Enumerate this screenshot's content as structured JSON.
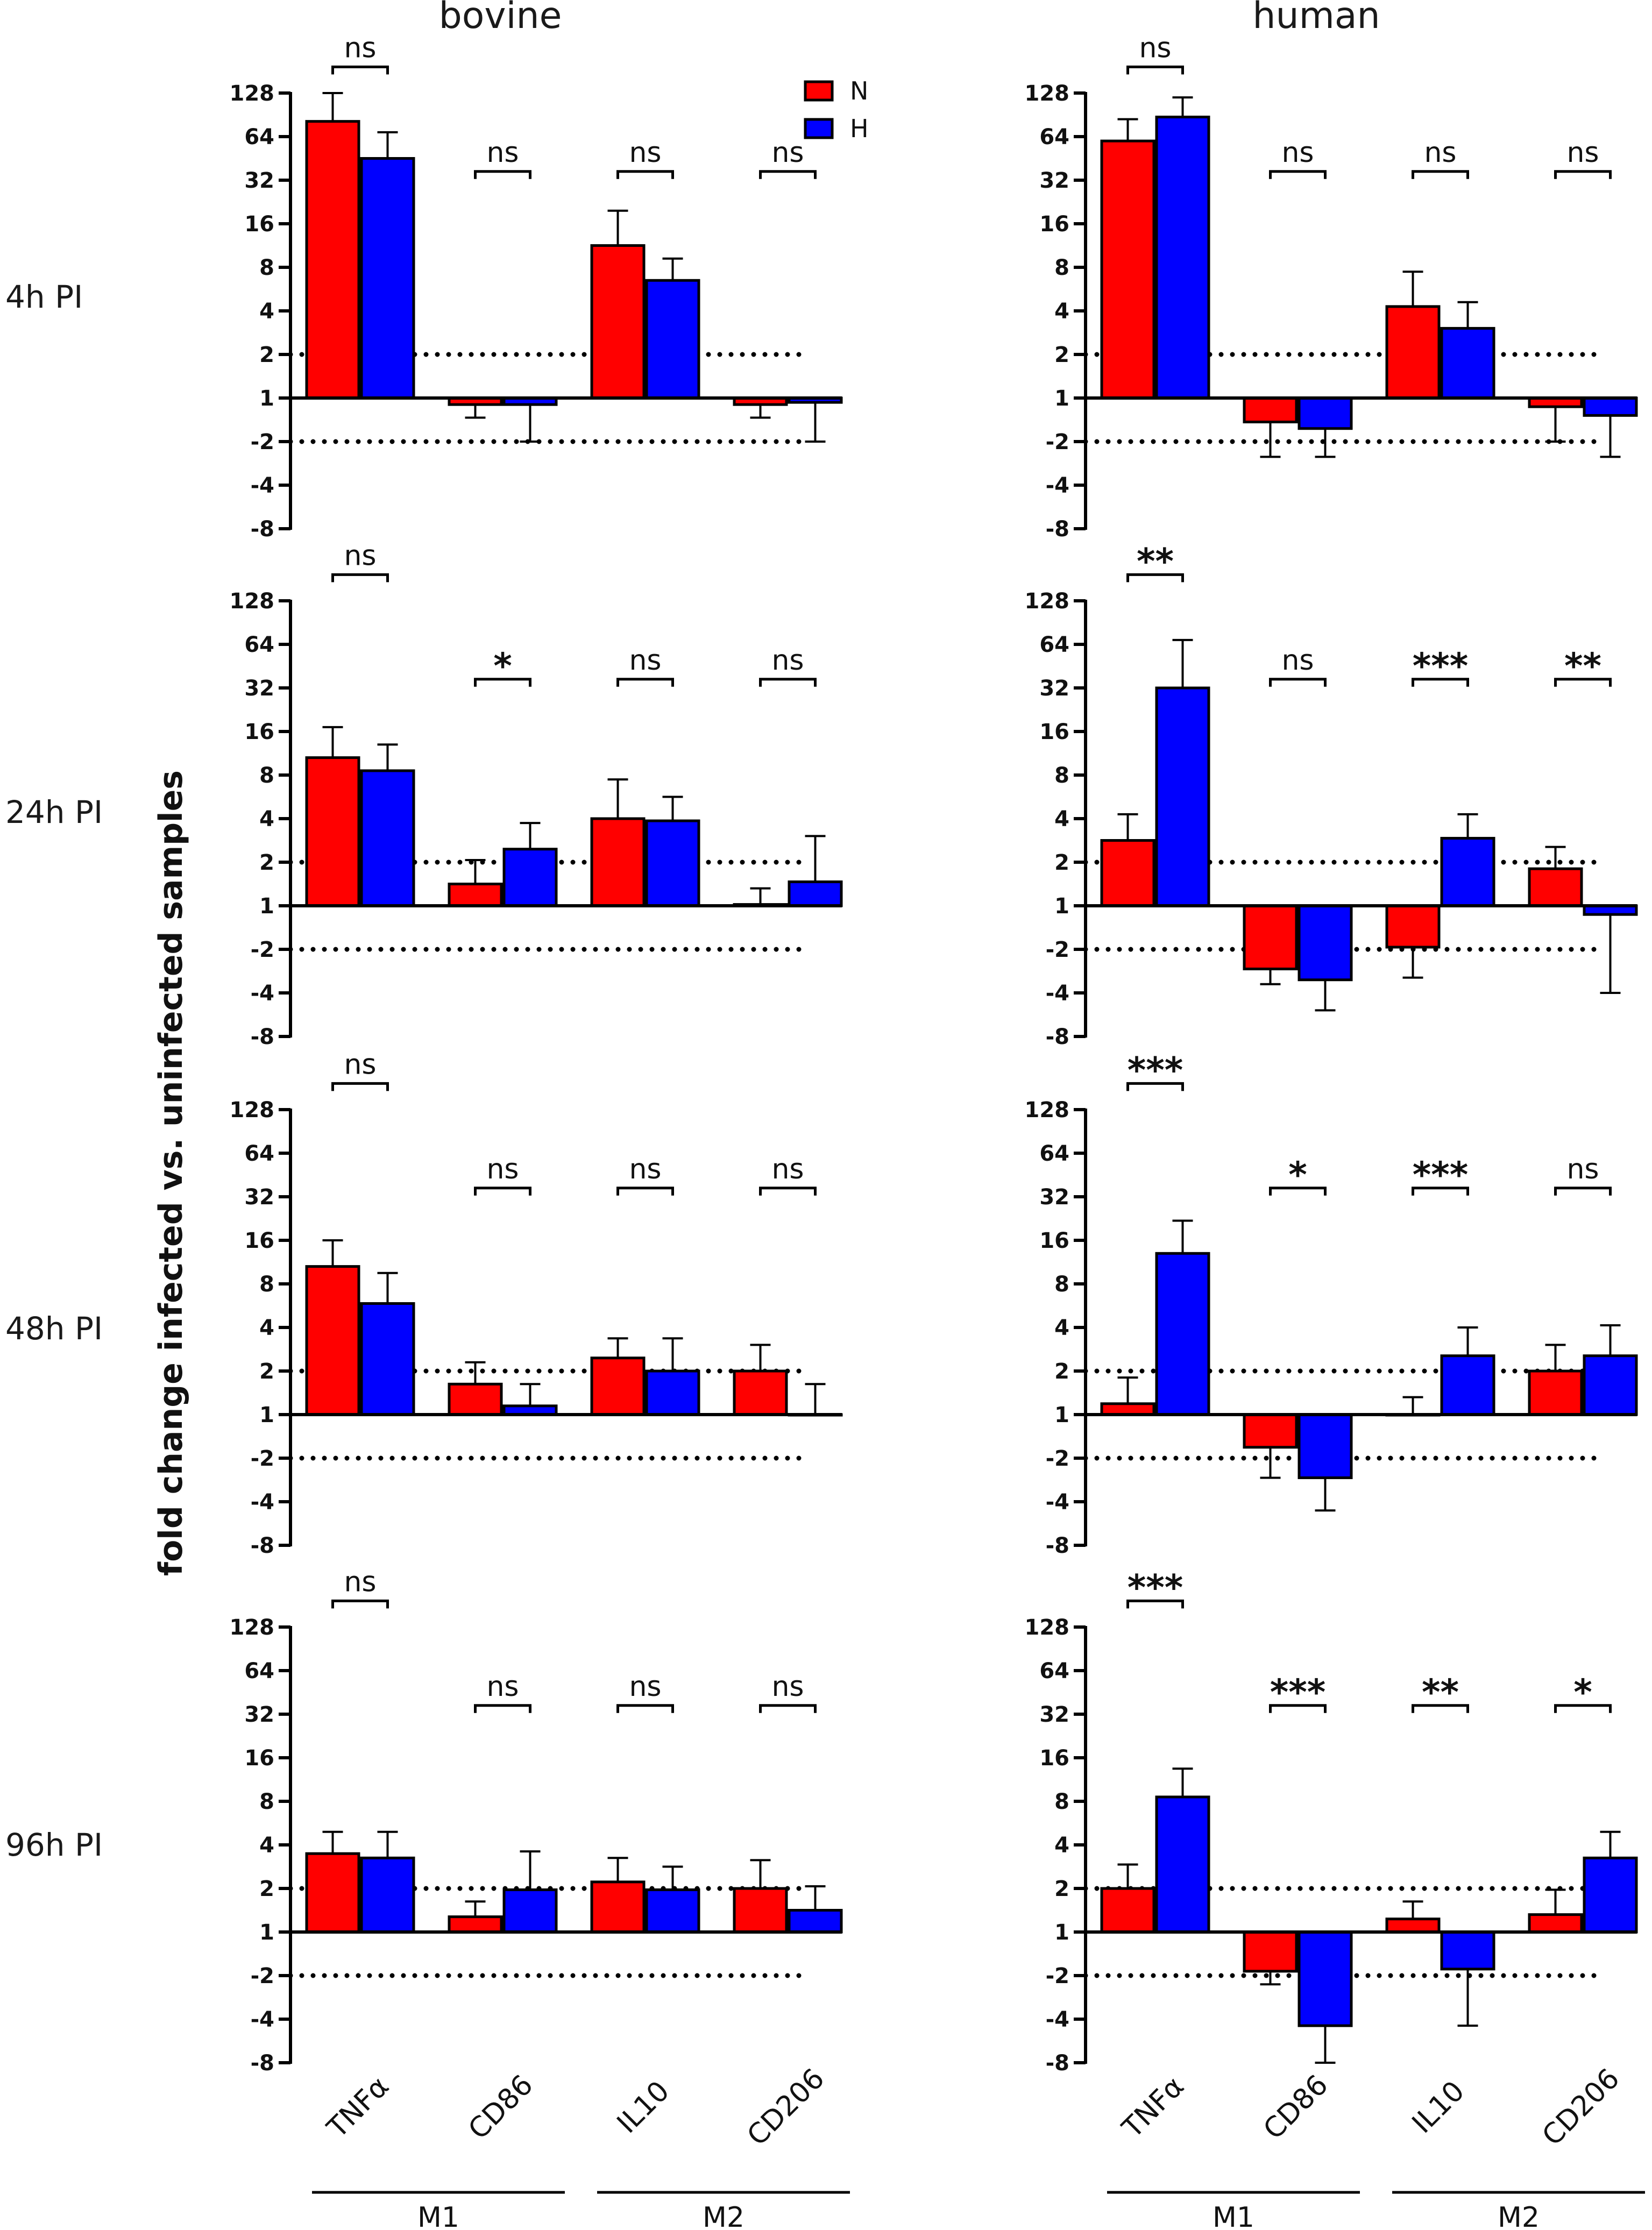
{
  "chart_data": {
    "type": "bar",
    "title": "",
    "ylabel": "fold change infected vs. uninfected samples",
    "y_ticks": [
      "128",
      "64",
      "32",
      "16",
      "8",
      "4",
      "2",
      "1",
      "-2",
      "-4",
      "-8"
    ],
    "ylim": [
      -8,
      128
    ],
    "y_scale": "log2 fold change (negative values shown as -2, -4, -8)",
    "threshold_lines": [
      2,
      -2
    ],
    "columns": [
      "bovine",
      "human"
    ],
    "rows": [
      "4h PI",
      "24h PI",
      "48h PI",
      "96h PI"
    ],
    "categories": [
      "TNFα",
      "CD86",
      "IL10",
      "CD206"
    ],
    "groups": [
      {
        "label": "M1",
        "categories": [
          "TNFα",
          "CD86"
        ]
      },
      {
        "label": "M2",
        "categories": [
          "IL10",
          "CD206"
        ]
      }
    ],
    "legend": [
      {
        "name": "N",
        "color": "#ff0000"
      },
      {
        "name": "H",
        "color": "#0000ff"
      }
    ],
    "legend_position": "top-right of bovine 4h PI panel",
    "panels": [
      {
        "species": "bovine",
        "time": "4h PI",
        "N": [
          {
            "v": 6.35,
            "e": 7.0
          },
          {
            "v": -0.15,
            "e": -0.45
          },
          {
            "v": 3.5,
            "e": 4.3
          },
          {
            "v": -0.15,
            "e": -0.45
          }
        ],
        "H": [
          {
            "v": 5.5,
            "e": 6.1
          },
          {
            "v": -0.15,
            "e": -1.0
          },
          {
            "v": 2.7,
            "e": 3.2
          },
          {
            "v": -0.1,
            "e": -1.0
          }
        ],
        "sig": [
          "ns",
          "ns",
          "ns",
          "ns"
        ]
      },
      {
        "species": "human",
        "time": "4h PI",
        "N": [
          {
            "v": 5.9,
            "e": 6.4
          },
          {
            "v": -0.55,
            "e": -1.35
          },
          {
            "v": 2.1,
            "e": 2.9
          },
          {
            "v": -0.2,
            "e": -1.0
          }
        ],
        "H": [
          {
            "v": 6.45,
            "e": 6.9
          },
          {
            "v": -0.7,
            "e": -1.35
          },
          {
            "v": 1.6,
            "e": 2.2
          },
          {
            "v": -0.4,
            "e": -1.35
          }
        ],
        "sig": [
          "ns",
          "ns",
          "ns",
          "ns"
        ]
      },
      {
        "species": "bovine",
        "time": "24h PI",
        "N": [
          {
            "v": 3.4,
            "e": 4.1
          },
          {
            "v": 0.5,
            "e": 1.05
          },
          {
            "v": 2.0,
            "e": 2.9
          },
          {
            "v": 0.03,
            "e": 0.4
          }
        ],
        "H": [
          {
            "v": 3.1,
            "e": 3.7
          },
          {
            "v": 1.3,
            "e": 1.9
          },
          {
            "v": 1.95,
            "e": 2.5
          },
          {
            "v": 0.55,
            "e": 1.6
          }
        ],
        "sig": [
          "ns",
          "*",
          "ns",
          "ns"
        ]
      },
      {
        "species": "human",
        "time": "24h PI",
        "N": [
          {
            "v": 1.5,
            "e": 2.1
          },
          {
            "v": -1.45,
            "e": -1.8
          },
          {
            "v": -0.95,
            "e": -1.65
          },
          {
            "v": 0.85,
            "e": 1.35
          }
        ],
        "H": [
          {
            "v": 5.0,
            "e": 6.1
          },
          {
            "v": -1.7,
            "e": -2.4
          },
          {
            "v": 1.55,
            "e": 2.1
          },
          {
            "v": -0.2,
            "e": -2.0
          }
        ],
        "sig": [
          "**",
          "ns",
          "***",
          "**"
        ]
      },
      {
        "species": "bovine",
        "time": "48h PI",
        "N": [
          {
            "v": 3.4,
            "e": 4.0
          },
          {
            "v": 0.7,
            "e": 1.2
          },
          {
            "v": 1.3,
            "e": 1.75
          },
          {
            "v": 1.0,
            "e": 1.6
          }
        ],
        "H": [
          {
            "v": 2.55,
            "e": 3.25
          },
          {
            "v": 0.2,
            "e": 0.7
          },
          {
            "v": 1.0,
            "e": 1.75
          },
          {
            "v": 0.0,
            "e": 0.7
          }
        ],
        "sig": [
          "ns",
          "ns",
          "ns",
          "ns"
        ]
      },
      {
        "species": "human",
        "time": "48h PI",
        "N": [
          {
            "v": 0.25,
            "e": 0.85
          },
          {
            "v": -0.75,
            "e": -1.45
          },
          {
            "v": 0.0,
            "e": 0.4
          },
          {
            "v": 1.0,
            "e": 1.6
          }
        ],
        "H": [
          {
            "v": 3.7,
            "e": 4.45
          },
          {
            "v": -1.45,
            "e": -2.2
          },
          {
            "v": 1.35,
            "e": 2.0
          },
          {
            "v": 1.35,
            "e": 2.05
          }
        ],
        "sig": [
          "***",
          "*",
          "***",
          "ns"
        ]
      },
      {
        "species": "bovine",
        "time": "96h PI",
        "N": [
          {
            "v": 1.8,
            "e": 2.3
          },
          {
            "v": 0.35,
            "e": 0.7
          },
          {
            "v": 1.15,
            "e": 1.7
          },
          {
            "v": 1.0,
            "e": 1.65
          }
        ],
        "H": [
          {
            "v": 1.7,
            "e": 2.3
          },
          {
            "v": 0.97,
            "e": 1.85
          },
          {
            "v": 0.97,
            "e": 1.5
          },
          {
            "v": 0.5,
            "e": 1.05
          }
        ],
        "sig": [
          "ns",
          "ns",
          "ns",
          "ns"
        ]
      },
      {
        "species": "human",
        "time": "96h PI",
        "N": [
          {
            "v": 1.0,
            "e": 1.55
          },
          {
            "v": -0.9,
            "e": -1.2
          },
          {
            "v": 0.3,
            "e": 0.7
          },
          {
            "v": 0.4,
            "e": 0.97
          }
        ],
        "H": [
          {
            "v": 3.1,
            "e": 3.75
          },
          {
            "v": -2.15,
            "e": -3.0
          },
          {
            "v": -0.85,
            "e": -2.15
          },
          {
            "v": 1.7,
            "e": 2.3
          }
        ],
        "sig": [
          "***",
          "***",
          "**",
          "*"
        ]
      }
    ]
  }
}
